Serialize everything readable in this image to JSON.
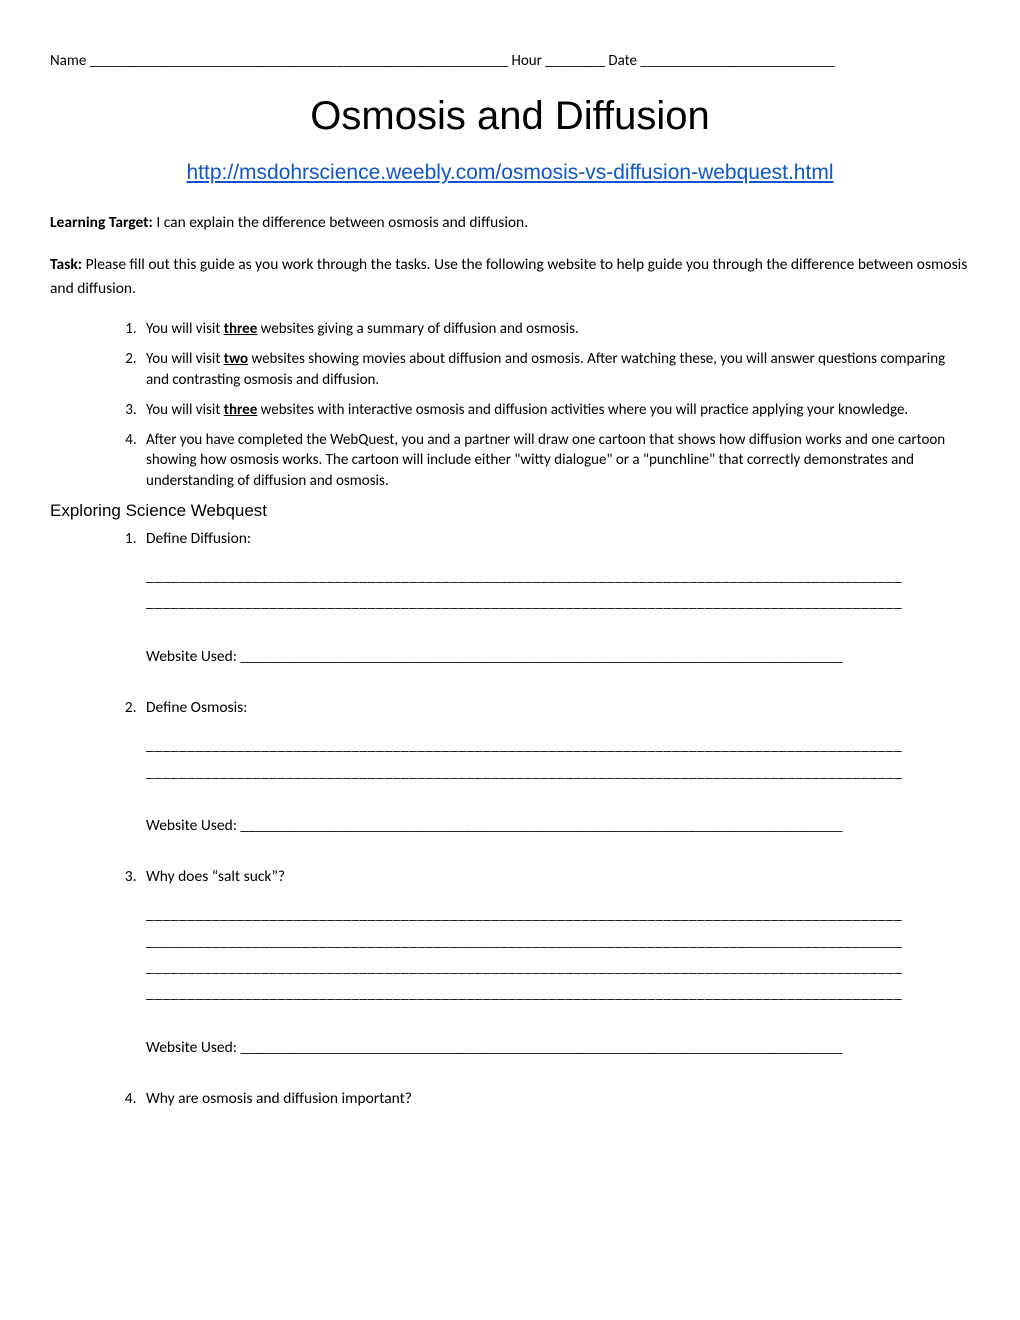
{
  "header": {
    "name_label": "Name ",
    "name_blank": "________________________________________________________",
    "hour_label": " Hour ",
    "hour_blank": "________",
    "date_label": " Date ",
    "date_blank": "__________________________"
  },
  "title": "Osmosis and Diffusion",
  "url": "http://msdohrscience.weebly.com/osmosis-vs-diffusion-webquest.html",
  "learning_target_label": "Learning Target: ",
  "learning_target_text": "I can explain the difference between osmosis and diffusion.",
  "task_label": "Task: ",
  "task_text": "Please fill out this guide as you work through the tasks. Use the following website to help guide you through the difference between osmosis and diffusion.",
  "intro_items": [
    {
      "pre": "You will visit ",
      "bold": "three",
      "post": " websites giving a summary of diffusion and osmosis."
    },
    {
      "pre": "You will visit ",
      "bold": "two",
      "post": " websites showing movies about diffusion and osmosis. After watching these, you will answer questions comparing and contrasting osmosis and diffusion."
    },
    {
      "pre": "You will visit ",
      "bold": "three",
      "post": " websites with interactive osmosis and diffusion activities where you will practice applying your knowledge."
    },
    {
      "pre": "After you have completed the WebQuest, you and a partner will draw one cartoon that shows how diffusion works and one cartoon showing how osmosis works. The cartoon will include either \"witty dialogue\" or a \"punchline\" that correctly demonstrates and understanding of diffusion and osmosis.",
      "bold": "",
      "post": ""
    }
  ],
  "webquest_heading": "Exploring Science Webquest",
  "long_line": "____________________________________________________________________________________________",
  "website_used_label": "Website Used: ",
  "website_used_blank": "______________________________________________________________________________",
  "questions": [
    {
      "prompt": "Define Diffusion:",
      "lines": 2,
      "website": true
    },
    {
      "prompt": "Define Osmosis:",
      "lines": 2,
      "website": true
    },
    {
      "prompt": "Why does “salt suck”?",
      "lines": 4,
      "website": true
    },
    {
      "prompt": "Why are osmosis and diffusion important?",
      "lines": 0,
      "website": false
    }
  ]
}
